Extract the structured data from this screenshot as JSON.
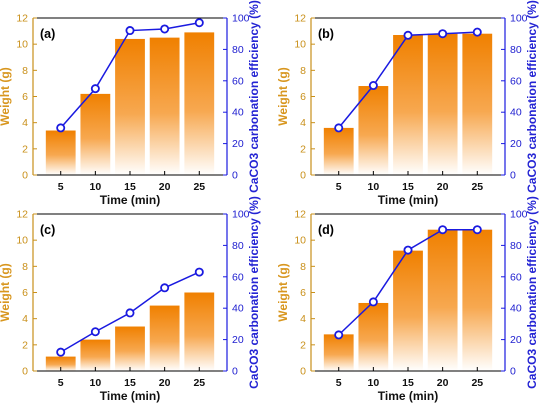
{
  "colors": {
    "bar_top": "#f08000",
    "bar_bottom": "#ffffff",
    "left_axis": "#c9901a",
    "right_axis": "#1a1ae0",
    "line": "#1a1ae0"
  },
  "chart_data": [
    {
      "panel_label": "(a)",
      "type": "bar+line",
      "categories": [
        "5",
        "10",
        "15",
        "20",
        "25"
      ],
      "xlabel": "Time (min)",
      "ylabel_left": "Weight (g)",
      "ylabel_right": "CaCO3 carbonation efficiency (%)",
      "ylim_left": [
        0,
        12
      ],
      "ylim_right": [
        0,
        100
      ],
      "left_ticks": [
        "0",
        "2",
        "4",
        "6",
        "8",
        "10",
        "12"
      ],
      "right_ticks": [
        "0",
        "20",
        "40",
        "60",
        "80",
        "100"
      ],
      "bar_values": [
        3.4,
        6.2,
        10.4,
        10.5,
        10.9
      ],
      "line_values": [
        30,
        55,
        92,
        93,
        97
      ]
    },
    {
      "panel_label": "(b)",
      "type": "bar+line",
      "categories": [
        "5",
        "10",
        "15",
        "20",
        "25"
      ],
      "xlabel": "Time (min)",
      "ylabel_left": "Weight (g)",
      "ylabel_right": "CaCO3 carbonation efficiency (%)",
      "ylim_left": [
        0,
        12
      ],
      "ylim_right": [
        0,
        100
      ],
      "left_ticks": [
        "0",
        "2",
        "4",
        "6",
        "8",
        "10",
        "12"
      ],
      "right_ticks": [
        "0",
        "20",
        "40",
        "60",
        "80",
        "100"
      ],
      "bar_values": [
        3.6,
        6.8,
        10.7,
        10.8,
        10.8
      ],
      "line_values": [
        30,
        57,
        89,
        90,
        91
      ]
    },
    {
      "panel_label": "(c)",
      "type": "bar+line",
      "categories": [
        "5",
        "10",
        "15",
        "20",
        "25"
      ],
      "xlabel": "Time (min)",
      "ylabel_left": "Weight (g)",
      "ylabel_right": "CaCO3 carbonation efficiency (%)",
      "ylim_left": [
        0,
        12
      ],
      "ylim_right": [
        0,
        100
      ],
      "left_ticks": [
        "0",
        "2",
        "4",
        "6",
        "8",
        "10",
        "12"
      ],
      "right_ticks": [
        "0",
        "20",
        "40",
        "60",
        "80",
        "100"
      ],
      "bar_values": [
        1.1,
        2.4,
        3.4,
        5.0,
        6.0
      ],
      "line_values": [
        12,
        25,
        37,
        53,
        63
      ]
    },
    {
      "panel_label": "(d)",
      "type": "bar+line",
      "categories": [
        "5",
        "10",
        "15",
        "20",
        "25"
      ],
      "xlabel": "Time (min)",
      "ylabel_left": "Weight (g)",
      "ylabel_right": "CaCO3 carbonation efficiency (%)",
      "ylim_left": [
        0,
        12
      ],
      "ylim_right": [
        0,
        100
      ],
      "left_ticks": [
        "0",
        "2",
        "4",
        "6",
        "8",
        "10",
        "12"
      ],
      "right_ticks": [
        "0",
        "20",
        "40",
        "60",
        "80",
        "100"
      ],
      "bar_values": [
        2.8,
        5.2,
        9.2,
        10.8,
        10.8
      ],
      "line_values": [
        23,
        44,
        77,
        90,
        90
      ]
    }
  ]
}
